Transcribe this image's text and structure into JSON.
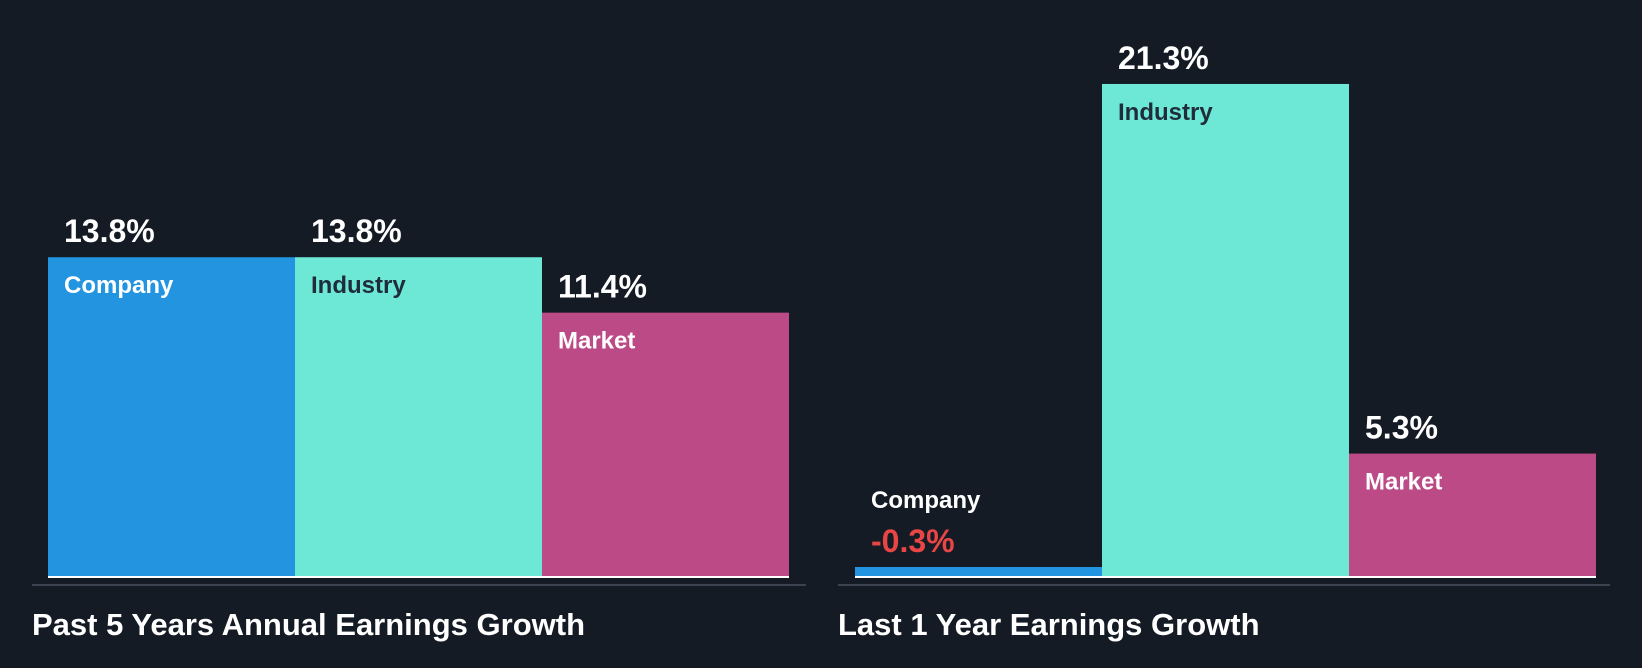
{
  "colors": {
    "background": "#151b24",
    "company": "#2394e0",
    "industry": "#6ee8d6",
    "market": "#bb4a86",
    "text_light": "#ffffff",
    "text_dark": "#1f2d3a",
    "negative": "#e84545",
    "axis": "#ffffff",
    "divider": "#3b4350"
  },
  "chart_data": [
    {
      "type": "bar",
      "title": "Past 5 Years Annual Earnings Growth",
      "categories": [
        "Company",
        "Industry",
        "Market"
      ],
      "values": [
        13.8,
        13.8,
        11.4
      ],
      "value_labels": [
        "13.8%",
        "13.8%",
        "11.4%"
      ],
      "unit": "%",
      "ylim": [
        0,
        21.3
      ],
      "grid": false,
      "legend": "none"
    },
    {
      "type": "bar",
      "title": "Last 1 Year Earnings Growth",
      "categories": [
        "Company",
        "Industry",
        "Market"
      ],
      "values": [
        -0.3,
        21.3,
        5.3
      ],
      "value_labels": [
        "-0.3%",
        "21.3%",
        "5.3%"
      ],
      "unit": "%",
      "ylim": [
        0,
        21.3
      ],
      "grid": false,
      "legend": "none"
    }
  ]
}
